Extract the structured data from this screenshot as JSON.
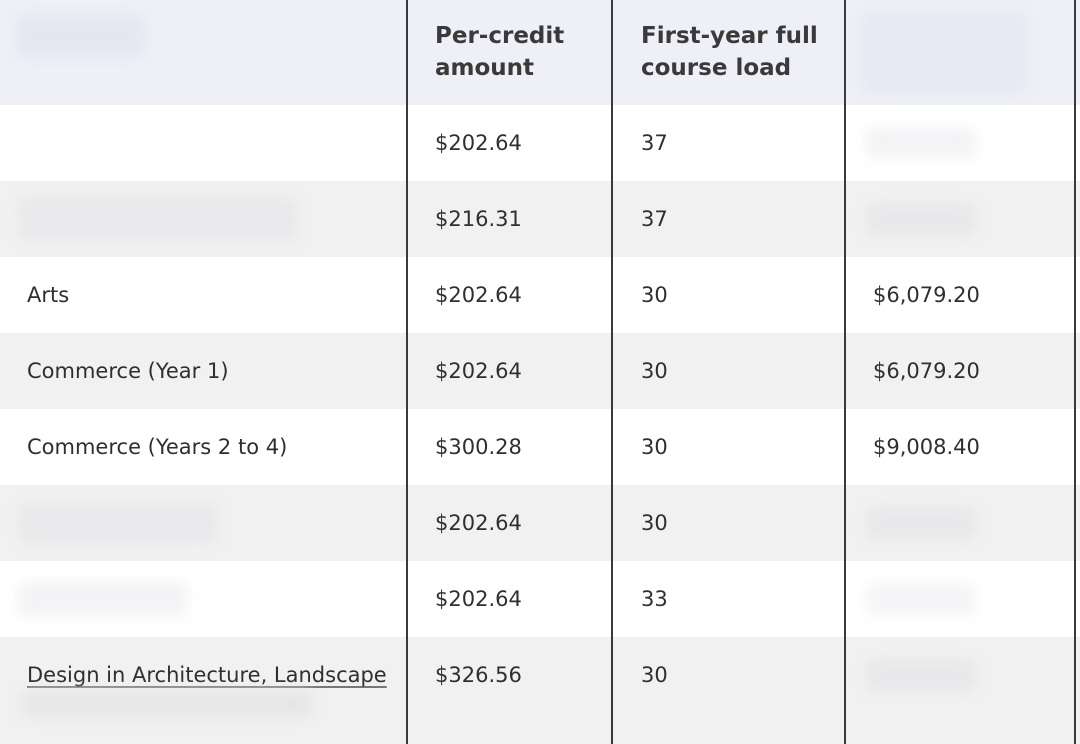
{
  "table": {
    "headers": {
      "per_credit": "Per-credit amount",
      "first_year": "First-year full course load"
    },
    "rows": [
      {
        "program": "",
        "per_credit": "$202.64",
        "credits": "37",
        "total": ""
      },
      {
        "program": "",
        "per_credit": "$216.31",
        "credits": "37",
        "total": ""
      },
      {
        "program": "Arts",
        "per_credit": "$202.64",
        "credits": "30",
        "total": "$6,079.20"
      },
      {
        "program": "Commerce (Year 1)",
        "per_credit": "$202.64",
        "credits": "30",
        "total": "$6,079.20"
      },
      {
        "program": "Commerce (Years 2 to 4)",
        "per_credit": "$300.28",
        "credits": "30",
        "total": "$9,008.40"
      },
      {
        "program": "",
        "per_credit": "$202.64",
        "credits": "30",
        "total": ""
      },
      {
        "program": "",
        "per_credit": "$202.64",
        "credits": "33",
        "total": ""
      },
      {
        "program": "Design in Architecture, Landscape",
        "per_credit": "$326.56",
        "credits": "30",
        "total": ""
      }
    ]
  },
  "colors": {
    "header_bg": "#eeeff7",
    "row_alt_bg": "#f1f1f1",
    "divider": "#3a3a3a"
  }
}
